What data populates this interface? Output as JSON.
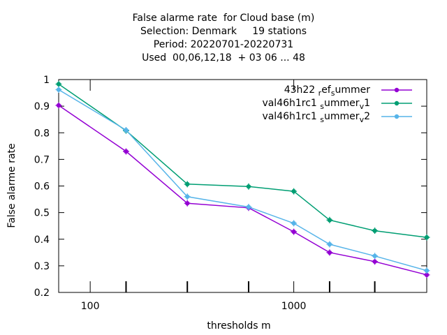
{
  "chart_data": {
    "type": "line",
    "title_lines": [
      "False alarme rate  for Cloud base (m)",
      "Selection: Denmark     19 stations",
      "Period: 20220701-20220731",
      "Used  00,06,12,18  + 03 06 ... 48"
    ],
    "xlabel": "thresholds m",
    "ylabel": "False alarme rate",
    "x_scale": "log",
    "xlim": [
      70,
      4500
    ],
    "ylim": [
      0.2,
      1.0
    ],
    "x_ticks": [
      100,
      1000
    ],
    "x_tick_labels": [
      "100",
      "1000"
    ],
    "y_ticks": [
      0.2,
      0.3,
      0.4,
      0.5,
      0.6,
      0.7,
      0.8,
      0.9,
      1.0
    ],
    "y_tick_labels": [
      "0.2",
      "0.3",
      "0.4",
      "0.5",
      "0.6",
      "0.7",
      "0.8",
      "0.9",
      "1"
    ],
    "grid": false,
    "legend_position": "top-right",
    "x": [
      70,
      150,
      300,
      600,
      1000,
      1500,
      2500,
      4500
    ],
    "series": [
      {
        "name": "43h22 ref summer",
        "legend_parts": [
          [
            "43h22 ",
            ""
          ],
          [
            "r",
            "sub"
          ],
          [
            "ef",
            ""
          ],
          [
            "s",
            "sub"
          ],
          [
            "ummer",
            ""
          ]
        ],
        "color": "#9400d3",
        "values": [
          0.903,
          0.73,
          0.535,
          0.518,
          0.428,
          0.35,
          0.316,
          0.266
        ]
      },
      {
        "name": "val46h1rc1 summer v1",
        "legend_parts": [
          [
            "val46h1rc1 ",
            ""
          ],
          [
            "s",
            "sub"
          ],
          [
            "ummer",
            ""
          ],
          [
            "v",
            "sub"
          ],
          [
            "1",
            ""
          ]
        ],
        "color": "#009e73",
        "values": [
          0.983,
          0.808,
          0.607,
          0.598,
          0.58,
          0.472,
          0.432,
          0.407
        ]
      },
      {
        "name": "val46h1rc1 summer v2",
        "legend_parts": [
          [
            "val46h1rc1 ",
            ""
          ],
          [
            "s",
            "sub"
          ],
          [
            "ummer",
            ""
          ],
          [
            "v",
            "sub"
          ],
          [
            "2",
            ""
          ]
        ],
        "color": "#56b4e9",
        "values": [
          0.962,
          0.81,
          0.56,
          0.521,
          0.46,
          0.381,
          0.337,
          0.282
        ]
      }
    ]
  }
}
